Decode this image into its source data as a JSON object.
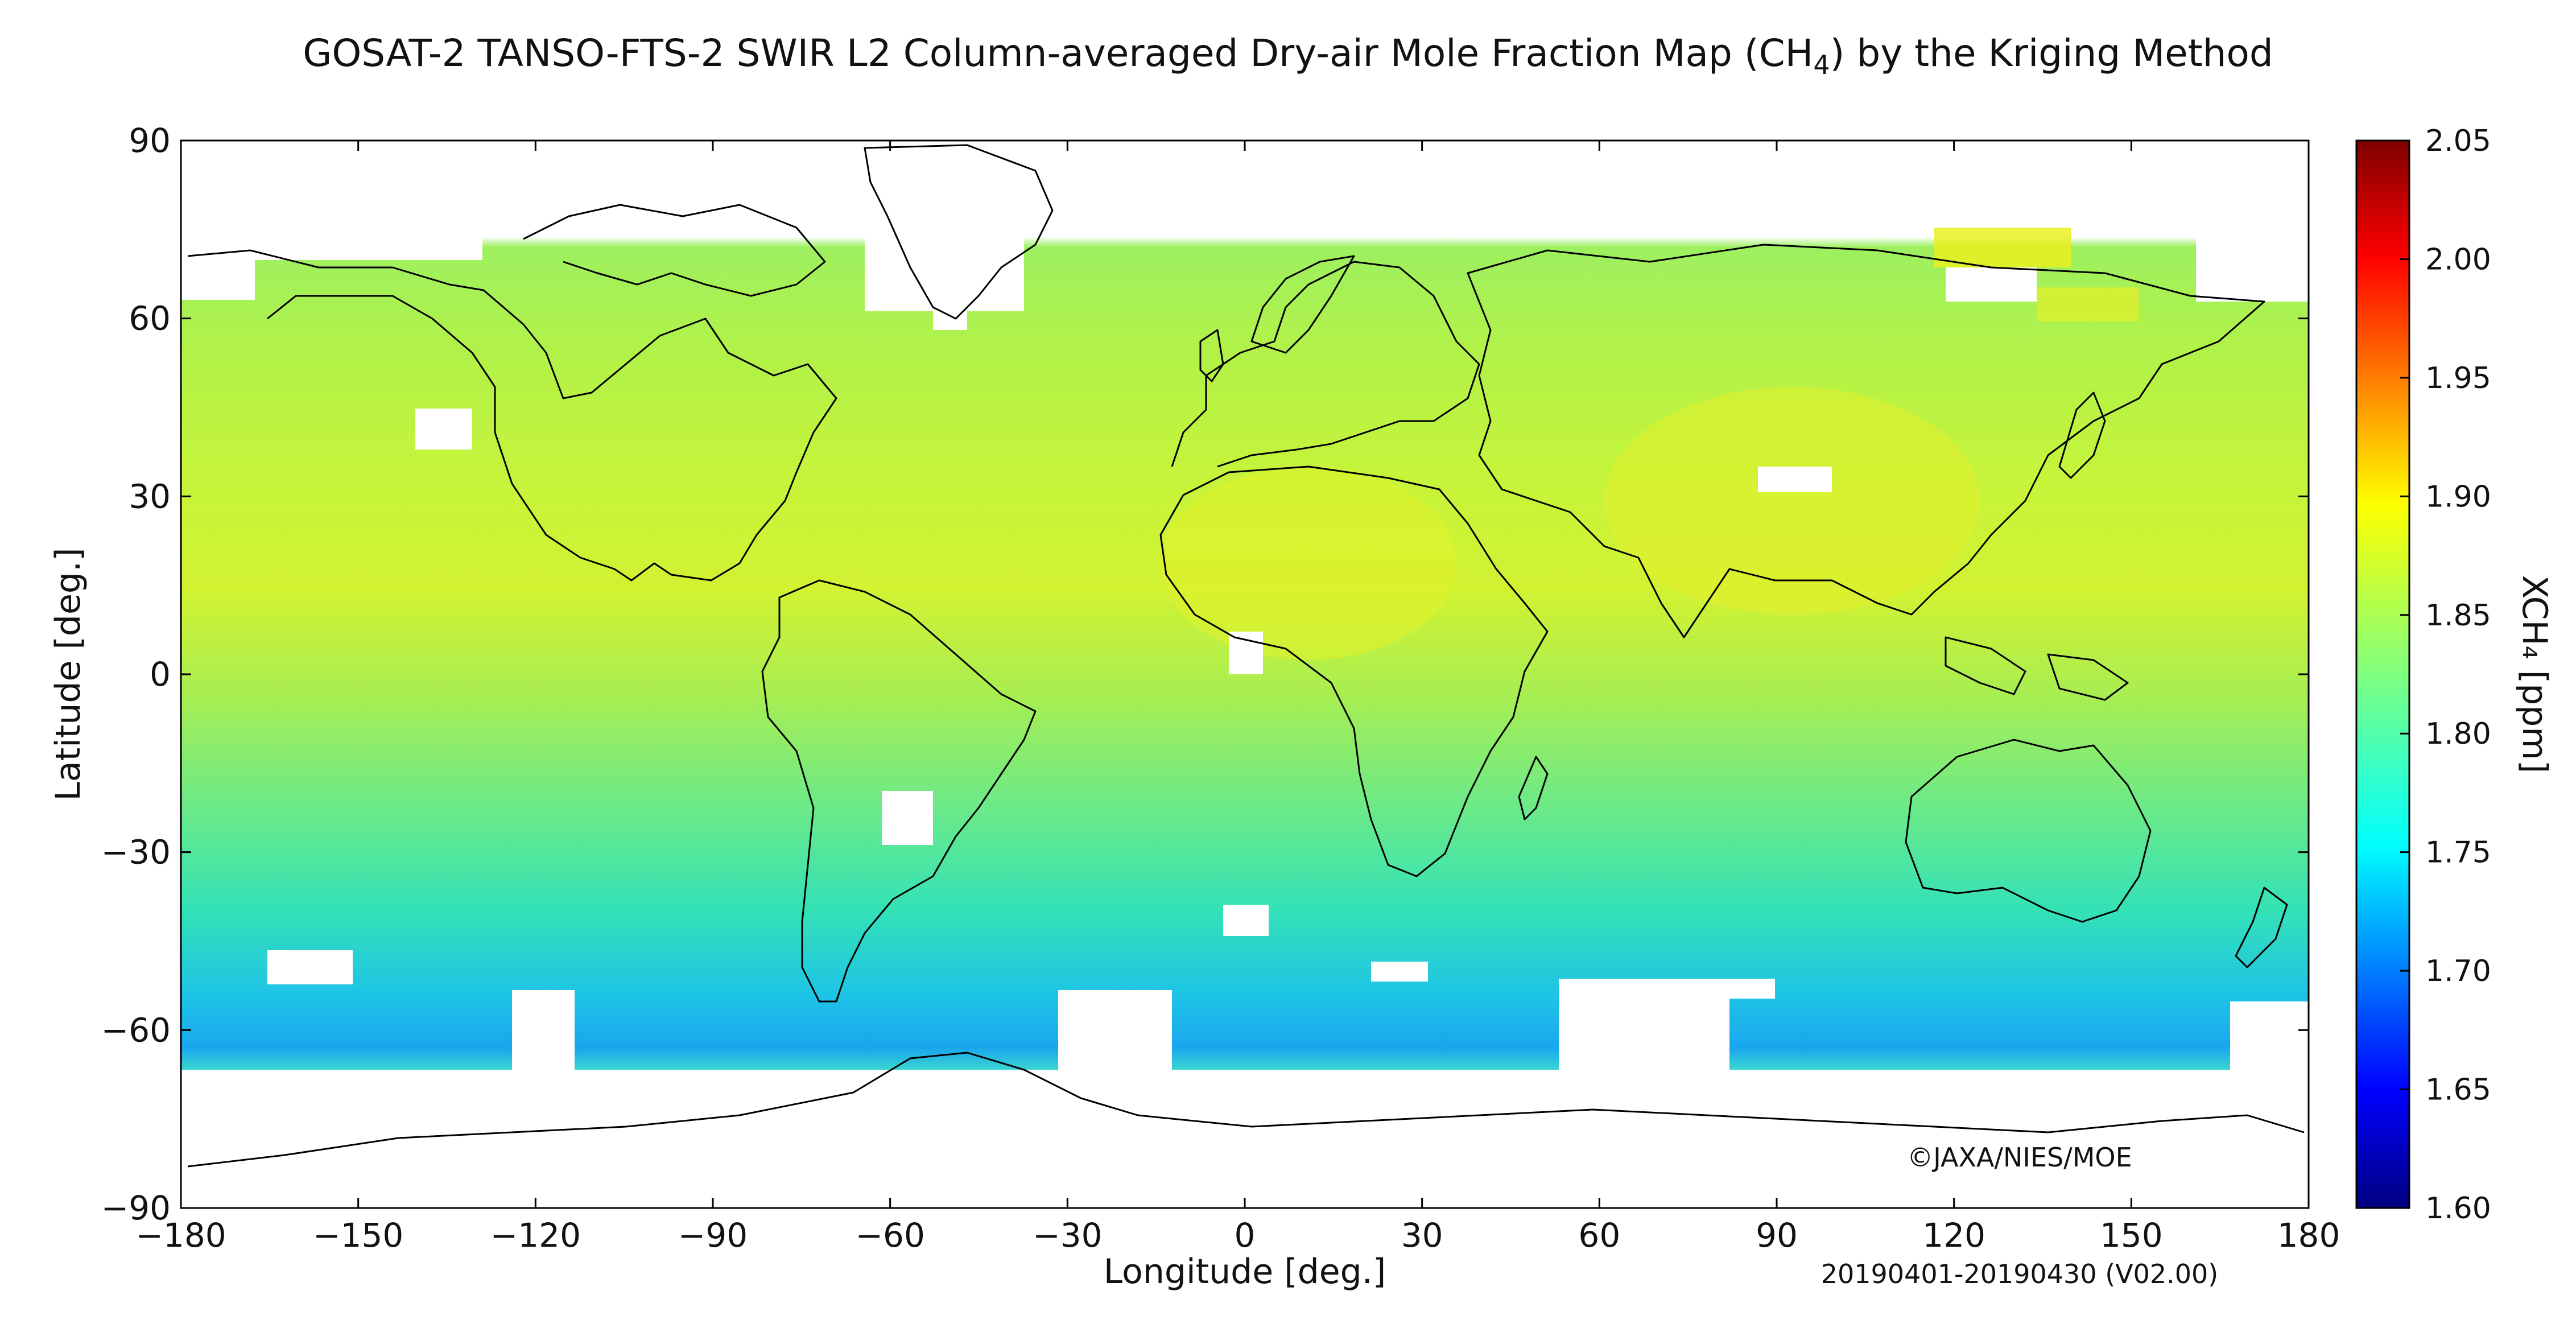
{
  "title": {
    "prefix": "GOSAT-2 TANSO-FTS-2 SWIR L2 Column-averaged Dry-air Mole Fraction Map (CH",
    "subscript": "4",
    "suffix": ") by the Kriging Method"
  },
  "map": {
    "projection": "equirectangular",
    "lon_range": [
      -180,
      180
    ],
    "lat_range": [
      -90,
      90
    ],
    "lon_ticks": [
      "−180",
      "−150",
      "−120",
      "−90",
      "−60",
      "−30",
      "0",
      "30",
      "60",
      "90",
      "120",
      "150",
      "180"
    ],
    "lat_ticks": [
      "90",
      "60",
      "30",
      "0",
      "−30",
      "−60",
      "−90"
    ],
    "xlabel": "Longitude [deg.]",
    "ylabel": "Latitude [deg.]",
    "copyright": "©JAXA/NIES/MOE",
    "period_label": "20190401-20190430 (V02.00)"
  },
  "colorbar": {
    "label": "XCH₄ [ppm]",
    "min": 1.6,
    "max": 2.05,
    "tick_labels": [
      "2.05",
      "2.00",
      "1.95",
      "1.90",
      "1.85",
      "1.80",
      "1.75",
      "1.70",
      "1.65",
      "1.60"
    ],
    "colormap": "jet"
  },
  "chart_data": {
    "type": "heatmap",
    "title": "GOSAT-2 TANSO-FTS-2 SWIR L2 Column-averaged Dry-air Mole Fraction Map (CH4) by the Kriging Method",
    "xlabel": "Longitude [deg.]",
    "ylabel": "Latitude [deg.]",
    "xlim": [
      -180,
      180
    ],
    "ylim": [
      -90,
      90
    ],
    "value_range": [
      1.6,
      2.05
    ],
    "grid": false,
    "zonal_mean_xch4": [
      {
        "lat": 75,
        "value": 1.875
      },
      {
        "lat": 65,
        "value": 1.86
      },
      {
        "lat": 55,
        "value": 1.855
      },
      {
        "lat": 45,
        "value": 1.855
      },
      {
        "lat": 35,
        "value": 1.86
      },
      {
        "lat": 25,
        "value": 1.865
      },
      {
        "lat": 15,
        "value": 1.86
      },
      {
        "lat": 5,
        "value": 1.845
      },
      {
        "lat": -5,
        "value": 1.83
      },
      {
        "lat": -15,
        "value": 1.815
      },
      {
        "lat": -25,
        "value": 1.8
      },
      {
        "lat": -35,
        "value": 1.79
      },
      {
        "lat": -45,
        "value": 1.78
      },
      {
        "lat": -55,
        "value": 1.765
      },
      {
        "lat": -62,
        "value": 1.745
      },
      {
        "lat": -66,
        "value": 1.765
      }
    ]
  }
}
